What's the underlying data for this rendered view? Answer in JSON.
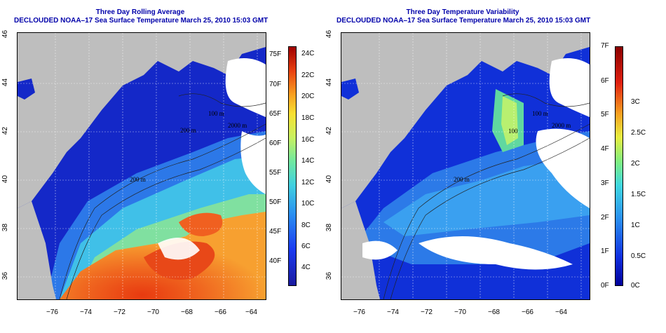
{
  "left_panel": {
    "title_line1": "Three Day Rolling Average",
    "title_line2": "DECLOUDED NOAA–17 Sea Surface Temperature March 25, 2010 15:03 GMT",
    "lon_ticks": [
      "−76",
      "−74",
      "−72",
      "−70",
      "−68",
      "−66",
      "−64"
    ],
    "lat_ticks": [
      "36",
      "38",
      "40",
      "42",
      "44",
      "46"
    ],
    "contour_labels": [
      "100 m",
      "200 m",
      "200 m",
      "2000 m"
    ],
    "colorbar_f": [
      "75F",
      "70F",
      "65F",
      "60F",
      "55F",
      "50F",
      "45F",
      "40F"
    ],
    "colorbar_c": [
      "24C",
      "22C",
      "20C",
      "18C",
      "16C",
      "14C",
      "12C",
      "10C",
      "8C",
      "6C",
      "4C"
    ]
  },
  "right_panel": {
    "title_line1": "Three Day Temperature Variability",
    "title_line2": "DECLOUDED NOAA–17 Sea Surface Temperature March 25, 2010 15:03 GMT",
    "lon_ticks": [
      "−76",
      "−74",
      "−72",
      "−70",
      "−68",
      "−66",
      "−64"
    ],
    "lat_ticks": [
      "36",
      "38",
      "40",
      "42",
      "44",
      "46"
    ],
    "contour_labels": [
      "100 m",
      "100",
      "200 m",
      "2000 m"
    ],
    "colorbar_f": [
      "7F",
      "6F",
      "5F",
      "4F",
      "3F",
      "2F",
      "1F",
      "0F"
    ],
    "colorbar_c": [
      "3C",
      "2.5C",
      "2C",
      "1.5C",
      "1C",
      "0.5C",
      "0C"
    ]
  },
  "colors": {
    "land": "#bebebe",
    "cloud": "#ffffff",
    "title": "#0000aa"
  }
}
